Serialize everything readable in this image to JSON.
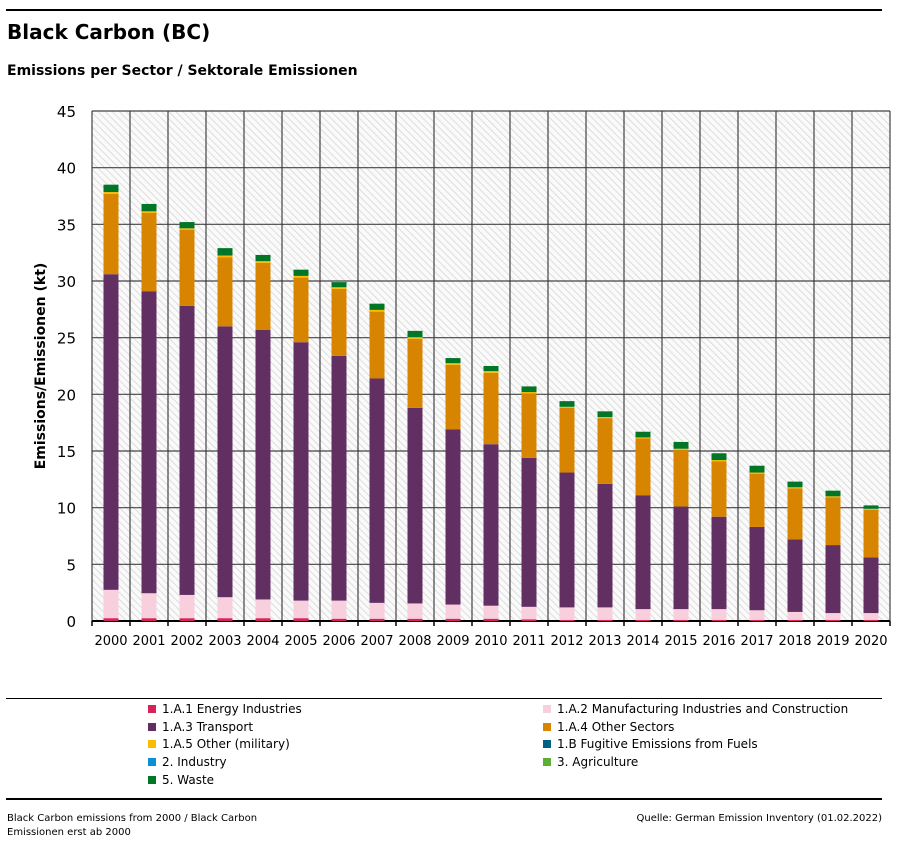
{
  "title": "Black Carbon (BC)",
  "subtitle": "Emissions per Sector / Sektorale Emissionen",
  "footer_left": "Black Carbon emissions from 2000 / Black Carbon Emissionen erst ab 2000",
  "footer_right": "Quelle: German Emission Inventory (01.02.2022)",
  "chart_data": {
    "type": "bar",
    "stacked": true,
    "ylabel": "Emissions/Emissionen (kt)",
    "ylim": [
      0,
      45
    ],
    "yticks": [
      0,
      5,
      10,
      15,
      20,
      25,
      30,
      35,
      40,
      45
    ],
    "grid": true,
    "legend_position": "bottom",
    "categories": [
      "2000",
      "2001",
      "2002",
      "2003",
      "2004",
      "2005",
      "2006",
      "2007",
      "2008",
      "2009",
      "2010",
      "2011",
      "2012",
      "2013",
      "2014",
      "2015",
      "2016",
      "2017",
      "2018",
      "2019",
      "2020"
    ],
    "series": [
      {
        "name": "1.A.1 Energy Industries",
        "color": "#d6245a",
        "values": [
          0.25,
          0.25,
          0.25,
          0.25,
          0.25,
          0.25,
          0.2,
          0.2,
          0.2,
          0.2,
          0.2,
          0.15,
          0.1,
          0.1,
          0.1,
          0.1,
          0.1,
          0.1,
          0.1,
          0.1,
          0.1
        ]
      },
      {
        "name": "1.A.2 Manufacturing Industries and Construction",
        "color": "#f7cfdd",
        "values": [
          2.5,
          2.2,
          2.05,
          1.85,
          1.65,
          1.55,
          1.6,
          1.4,
          1.35,
          1.25,
          1.15,
          1.1,
          1.1,
          1.1,
          0.95,
          0.95,
          0.95,
          0.85,
          0.7,
          0.6,
          0.6
        ]
      },
      {
        "name": "1.A.3 Transport",
        "color": "#622f63",
        "values": [
          27.85,
          26.65,
          25.5,
          23.9,
          23.8,
          22.8,
          21.6,
          19.8,
          17.25,
          15.45,
          14.25,
          13.15,
          11.9,
          10.9,
          10.05,
          9.05,
          8.15,
          7.35,
          6.4,
          6.0,
          4.9
        ]
      },
      {
        "name": "1.A.4 Other Sectors",
        "color": "#d78400",
        "values": [
          7.1,
          6.9,
          6.7,
          6.1,
          5.9,
          5.7,
          5.9,
          5.9,
          6.1,
          5.7,
          6.3,
          5.7,
          5.7,
          5.8,
          5.0,
          5.0,
          4.9,
          4.7,
          4.5,
          4.2,
          4.2
        ]
      },
      {
        "name": "1.A.5 Other (military)",
        "color": "#fabb00",
        "values": [
          0.15,
          0.15,
          0.15,
          0.15,
          0.15,
          0.15,
          0.15,
          0.15,
          0.15,
          0.15,
          0.15,
          0.1,
          0.1,
          0.1,
          0.1,
          0.1,
          0.1,
          0.1,
          0.1,
          0.1,
          0.1
        ]
      },
      {
        "name": "1.B Fugitive Emissions from Fuels",
        "color": "#005f85",
        "values": [
          0,
          0,
          0,
          0,
          0,
          0,
          0,
          0,
          0,
          0,
          0,
          0,
          0,
          0,
          0,
          0,
          0,
          0,
          0,
          0,
          0
        ]
      },
      {
        "name": "2. Industry",
        "color": "#0b90d5",
        "values": [
          0,
          0,
          0,
          0,
          0,
          0,
          0,
          0,
          0,
          0,
          0,
          0,
          0,
          0,
          0,
          0,
          0,
          0,
          0,
          0,
          0
        ]
      },
      {
        "name": "3. Agriculture",
        "color": "#5ead35",
        "values": [
          0,
          0,
          0,
          0,
          0,
          0,
          0,
          0,
          0,
          0,
          0,
          0,
          0,
          0,
          0,
          0,
          0,
          0,
          0,
          0,
          0
        ]
      },
      {
        "name": "5. Waste",
        "color": "#007626",
        "values": [
          0.65,
          0.65,
          0.55,
          0.65,
          0.55,
          0.55,
          0.45,
          0.55,
          0.55,
          0.45,
          0.45,
          0.5,
          0.5,
          0.5,
          0.5,
          0.6,
          0.6,
          0.6,
          0.5,
          0.5,
          0.3
        ]
      }
    ]
  }
}
